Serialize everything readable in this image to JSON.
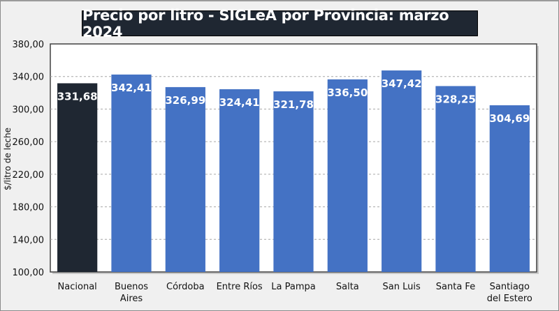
{
  "chart_data": {
    "type": "bar",
    "title": "Precio por litro - SIGLeA por Provincia: marzo 2024",
    "xlabel": "",
    "ylabel": "$/litro de leche",
    "ylim": [
      100,
      380
    ],
    "yticks": [
      100,
      140,
      180,
      220,
      260,
      300,
      340,
      380
    ],
    "ytick_labels": [
      "100,00",
      "140,00",
      "180,00",
      "220,00",
      "260,00",
      "300,00",
      "340,00",
      "380,00"
    ],
    "grid": "horizontal dashed",
    "categories": [
      [
        "Nacional"
      ],
      [
        "Buenos",
        "Aires"
      ],
      [
        "Córdoba"
      ],
      [
        "Entre Ríos"
      ],
      [
        "La Pampa"
      ],
      [
        "Salta"
      ],
      [
        "San Luis"
      ],
      [
        "Santa Fe"
      ],
      [
        "Santiago",
        "del Estero"
      ]
    ],
    "values": [
      331.68,
      342.41,
      326.99,
      324.41,
      321.78,
      336.5,
      347.42,
      328.25,
      304.69
    ],
    "value_labels": [
      "331,68",
      "342,41",
      "326,99",
      "324,41",
      "321,78",
      "336,50",
      "347,42",
      "328,25",
      "304,69"
    ],
    "colors": [
      "#1f2732",
      "#4472c4",
      "#4472c4",
      "#4472c4",
      "#4472c4",
      "#4472c4",
      "#4472c4",
      "#4472c4",
      "#4472c4"
    ]
  }
}
